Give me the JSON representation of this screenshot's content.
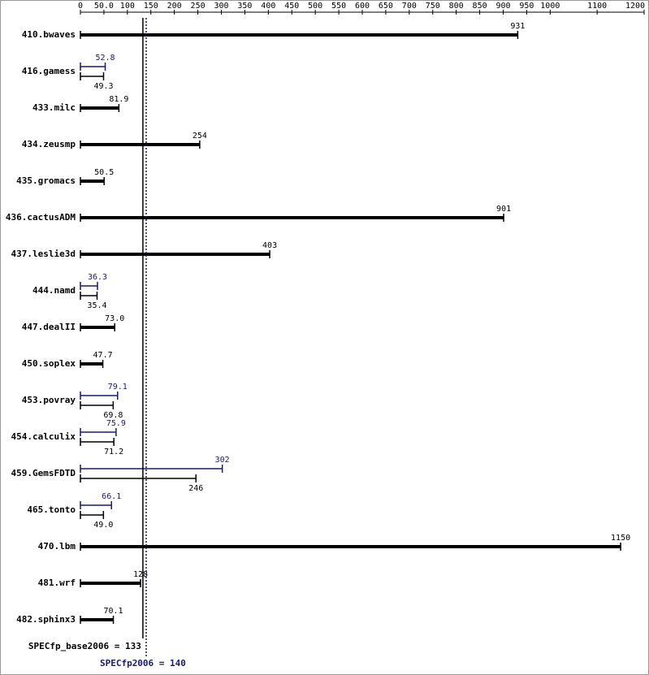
{
  "chart_data": {
    "type": "spec_bar",
    "xlim": [
      0,
      1200
    ],
    "xticks": [
      0,
      {
        "value": 50,
        "label": "50.0"
      },
      100,
      150,
      200,
      250,
      300,
      350,
      400,
      450,
      500,
      550,
      600,
      650,
      700,
      750,
      800,
      850,
      900,
      950,
      1000,
      1100,
      1200
    ],
    "base_color": "#000000",
    "peak_color": "#191970",
    "benchmarks": [
      {
        "name": "410.bwaves",
        "base": 931
      },
      {
        "name": "416.gamess",
        "peak": 52.8,
        "base": 49.3
      },
      {
        "name": "433.milc",
        "base": 81.9
      },
      {
        "name": "434.zeusmp",
        "base": 254
      },
      {
        "name": "435.gromacs",
        "base": 50.5
      },
      {
        "name": "436.cactusADM",
        "base": 901
      },
      {
        "name": "437.leslie3d",
        "base": 403
      },
      {
        "name": "444.namd",
        "peak": 36.3,
        "base": 35.4
      },
      {
        "name": "447.dealII",
        "base": 73,
        "base_label": "73.0"
      },
      {
        "name": "450.soplex",
        "base": 47.7
      },
      {
        "name": "453.povray",
        "peak": 79.1,
        "base": 69.8
      },
      {
        "name": "454.calculix",
        "peak": 75.9,
        "base": 71.2
      },
      {
        "name": "459.GemsFDTD",
        "peak": 302,
        "base": 246
      },
      {
        "name": "465.tonto",
        "peak": 66.1,
        "base": 49,
        "base_label": "49.0"
      },
      {
        "name": "470.lbm",
        "base": 1150
      },
      {
        "name": "481.wrf",
        "base": 128
      },
      {
        "name": "482.sphinx3",
        "base": 70.1
      }
    ],
    "base_metric": {
      "label": "SPECfp_base2006 = 133",
      "value": 133
    },
    "peak_metric": {
      "label": "SPECfp2006 = 140",
      "value": 140
    }
  }
}
